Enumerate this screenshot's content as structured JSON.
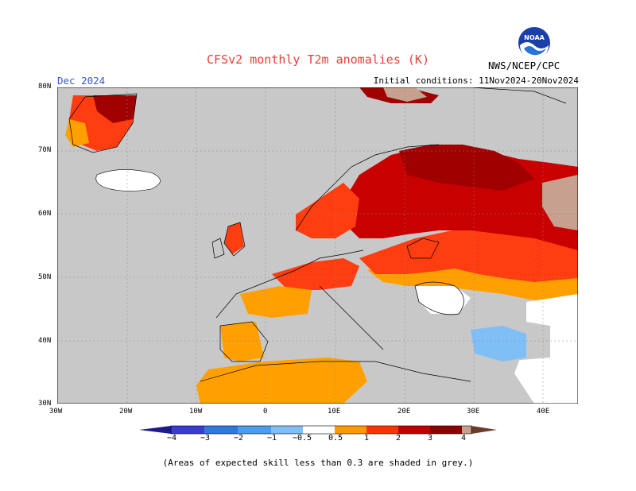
{
  "header": {
    "title": "CFSv2 monthly T2m anomalies (K)",
    "month": "Dec 2024",
    "initial_conditions": "Initial conditions: 11Nov2024-20Nov2024",
    "agency": "NWS/NCEP/CPC",
    "logo_text": "NOAA"
  },
  "axes": {
    "lat_labels": [
      "80N",
      "70N",
      "60N",
      "50N",
      "40N",
      "30N"
    ],
    "lon_labels": [
      "30W",
      "20W",
      "10W",
      "0",
      "10E",
      "20E",
      "30E",
      "40E"
    ]
  },
  "colorbar": {
    "labels": [
      "−4",
      "−3",
      "−2",
      "−1",
      "−0.5",
      "0.5",
      "1",
      "2",
      "3",
      "4"
    ],
    "colors": [
      "#1e1a8c",
      "#3a3bd0",
      "#2f78e0",
      "#4a9cf0",
      "#80bff5",
      "#ffffff",
      "#ff9900",
      "#ff3300",
      "#c00000",
      "#8b0000",
      "#c8a090",
      "#6b3b2e"
    ]
  },
  "map": {
    "background": "#c8c8c8",
    "colors": {
      "orange": "#ffa000",
      "red_orange": "#ff3d10",
      "red": "#c80000",
      "dark_red": "#a00000",
      "brown_light": "#c8a090",
      "blue_light": "#80bff5",
      "white": "#ffffff"
    }
  },
  "footnote": "(Areas of expected skill less than 0.3 are shaded in grey.)"
}
